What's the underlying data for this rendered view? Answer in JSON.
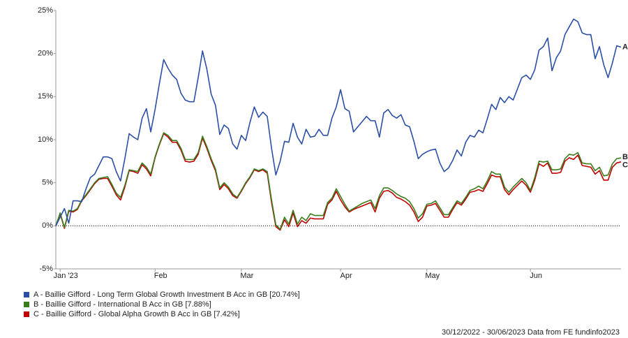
{
  "chart_data": {
    "type": "line",
    "categories": [
      null,
      "Jan '23",
      null,
      null,
      null,
      null,
      null,
      null,
      null,
      null,
      null,
      null,
      null,
      null,
      null,
      null,
      null,
      null,
      null,
      null,
      null,
      null,
      null,
      "Feb",
      null,
      null,
      null,
      null,
      null,
      null,
      null,
      null,
      null,
      null,
      null,
      null,
      null,
      null,
      null,
      null,
      null,
      null,
      null,
      "Mar",
      null,
      null,
      null,
      null,
      null,
      null,
      null,
      null,
      null,
      null,
      null,
      null,
      null,
      null,
      null,
      null,
      null,
      null,
      null,
      null,
      null,
      null,
      "Apr",
      null,
      null,
      null,
      null,
      null,
      null,
      null,
      null,
      null,
      null,
      null,
      null,
      null,
      null,
      null,
      null,
      null,
      null,
      null,
      "May",
      null,
      null,
      null,
      null,
      null,
      null,
      null,
      null,
      null,
      null,
      null,
      null,
      null,
      null,
      null,
      null,
      null,
      null,
      null,
      null,
      null,
      null,
      null,
      "Jun",
      null,
      null,
      null,
      null,
      null,
      null,
      null,
      null,
      null,
      null,
      null,
      null,
      null,
      null,
      null,
      null,
      null,
      null,
      null,
      null,
      null
    ],
    "series": [
      {
        "name": "A - Baillie Gifford - Long Term Global Growth Investment B Acc in GB [20.74%]",
        "end_label": "A",
        "color": "#2b4fa6",
        "values": [
          0,
          1,
          2,
          0.3,
          2.9,
          2.9,
          2.8,
          4.3,
          5.6,
          6,
          7,
          8,
          8,
          7.8,
          6.3,
          5.2,
          7.8,
          10.7,
          10.3,
          10,
          12.5,
          13.6,
          10.9,
          13.5,
          16.5,
          19.3,
          18.3,
          17.5,
          17,
          15.4,
          14.6,
          14.4,
          14.4,
          17.2,
          20.3,
          18.2,
          15.3,
          14,
          10.6,
          11.7,
          11.3,
          9.5,
          8.9,
          10.5,
          9.9,
          12,
          13.8,
          12.6,
          13.2,
          12.7,
          9,
          5.9,
          7.5,
          9.8,
          9.7,
          11.9,
          10.3,
          9.5,
          11.2,
          10.3,
          10.4,
          11.2,
          10.5,
          10.5,
          12.5,
          13.8,
          15.8,
          13.6,
          13.3,
          10.9,
          11.5,
          12.1,
          12.7,
          12.2,
          12.2,
          10.3,
          13.1,
          13.5,
          12.8,
          12.5,
          12.9,
          11.7,
          11.5,
          9.8,
          7.8,
          8.3,
          8.6,
          8.8,
          8.9,
          7.3,
          6.3,
          6.7,
          7.6,
          8.8,
          8.1,
          9.7,
          10.5,
          10.3,
          11.1,
          10.8,
          12.4,
          14.1,
          13.5,
          14.9,
          14.3,
          15,
          14.6,
          15.9,
          17.2,
          17.5,
          17,
          18.1,
          20.4,
          20.8,
          21.8,
          18,
          19.5,
          20.3,
          22.2,
          23.1,
          24,
          23.7,
          22.4,
          22.2,
          22.2,
          19.4,
          20.8,
          18.7,
          17.2,
          18.9,
          20.9,
          20.74
        ]
      },
      {
        "name": "B - Baillie Gifford - International B Acc in GB [7.88%]",
        "end_label": "B",
        "color": "#3a7d1c",
        "values": [
          0,
          1.5,
          -0.2,
          1.8,
          1.7,
          2,
          3,
          3.6,
          4.3,
          5,
          5.5,
          5.6,
          5.7,
          4.8,
          3.8,
          3.3,
          4.7,
          6.5,
          6.4,
          6.3,
          7.3,
          6.8,
          6,
          8,
          9.5,
          10.8,
          10.5,
          9.9,
          9.9,
          9,
          7.7,
          7.7,
          7.7,
          8.5,
          10.4,
          9.2,
          7.8,
          6.6,
          4.4,
          5,
          4.5,
          3.7,
          3.3,
          4.1,
          5,
          5.7,
          6.6,
          6.4,
          6.6,
          6.3,
          3,
          0.1,
          -0.4,
          1,
          0.2,
          1.8,
          0.2,
          1,
          0.6,
          1.4,
          1.2,
          1.2,
          1.2,
          2.7,
          3.2,
          4.3,
          3.4,
          2.5,
          1.7,
          2,
          2.3,
          2.6,
          2.8,
          3,
          2,
          3.5,
          4.4,
          4.4,
          4.1,
          3.7,
          3.4,
          3.2,
          2.8,
          2,
          0.9,
          1.4,
          2.5,
          2.6,
          2.9,
          2.1,
          1.3,
          1.3,
          2.1,
          2.9,
          2.6,
          3.3,
          4.1,
          4.3,
          4.6,
          4.3,
          5.2,
          6.3,
          6,
          6,
          4.5,
          3.9,
          4.5,
          5,
          5.5,
          5,
          4.1,
          5.6,
          7.5,
          7.4,
          7.5,
          6.5,
          6.5,
          6.6,
          7.8,
          8.3,
          8.2,
          8.5,
          7.3,
          7.2,
          7.2,
          6.4,
          6.8,
          5.8,
          5.9,
          7.2,
          7.8,
          7.88
        ]
      },
      {
        "name": "C - Baillie Gifford - Global Alpha Growth B Acc in GB [7.42%]",
        "end_label": "C",
        "color": "#c00000",
        "values": [
          0,
          1.4,
          -0.3,
          1.7,
          1.6,
          1.9,
          2.9,
          3.5,
          4.2,
          4.9,
          5.4,
          5.5,
          5.5,
          4.6,
          3.6,
          3,
          4.5,
          6.4,
          6.3,
          6.1,
          7.1,
          6.6,
          5.8,
          7.9,
          9.4,
          10.7,
          10.3,
          9.7,
          9.7,
          8.8,
          7.5,
          7.4,
          7.5,
          8.3,
          10.2,
          9,
          7.6,
          6.4,
          4.2,
          4.8,
          4.3,
          3.5,
          3.2,
          4,
          4.9,
          5.6,
          6.5,
          6.3,
          6.5,
          6.1,
          2.7,
          -0.1,
          -0.5,
          0.7,
          -0.1,
          1.5,
          -0.1,
          0.6,
          0.3,
          0.9,
          0.8,
          0.8,
          0.8,
          2.5,
          3,
          4,
          3,
          2.2,
          1.6,
          1.9,
          2.1,
          2.3,
          2.5,
          2.7,
          1.6,
          3.2,
          4,
          4.1,
          3.8,
          3.3,
          3.1,
          2.8,
          2.4,
          1.6,
          0.5,
          1,
          2.3,
          2.4,
          2.6,
          1.8,
          1,
          1,
          1.9,
          2.7,
          2.4,
          3.1,
          3.9,
          4,
          4.2,
          4,
          4.9,
          5.9,
          5.7,
          5.7,
          4.2,
          3.6,
          4.2,
          4.7,
          5.2,
          4.7,
          3.9,
          5.3,
          7.2,
          6.9,
          7.3,
          6.1,
          6.1,
          6.2,
          7.5,
          7.9,
          7.7,
          8.2,
          7,
          6.9,
          6.8,
          6,
          6.4,
          5.3,
          5.3,
          6.8,
          7.3,
          7.42
        ]
      }
    ],
    "ylim": [
      -5,
      25
    ],
    "yticks": [
      {
        "value": -5,
        "label": "-5%"
      },
      {
        "value": 0,
        "label": "0%"
      },
      {
        "value": 5,
        "label": "5%"
      },
      {
        "value": 10,
        "label": "10%"
      },
      {
        "value": 15,
        "label": "15%"
      },
      {
        "value": 20,
        "label": "20%"
      },
      {
        "value": 25,
        "label": "25%"
      }
    ],
    "zero_line": true,
    "footer": "30/12/2022 - 30/06/2023 Data from FE fundinfo2023"
  }
}
